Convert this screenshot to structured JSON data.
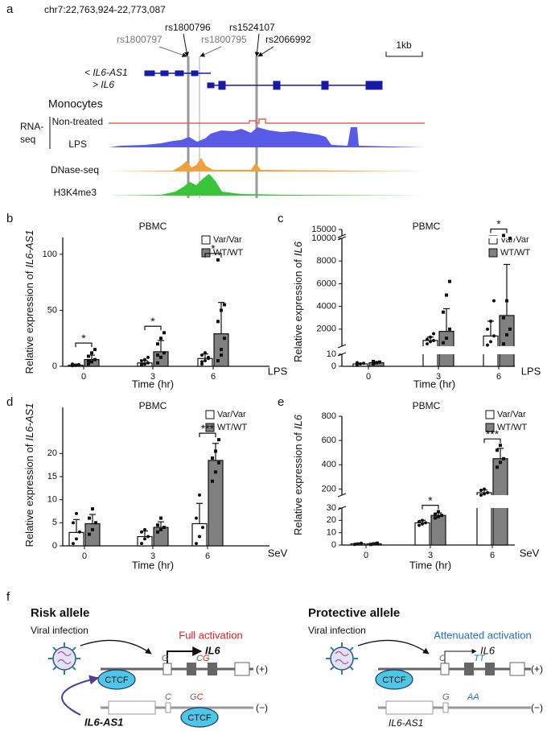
{
  "panel_a": {
    "label": "a",
    "locus": "chr7:22,763,924-22,773,087",
    "snps": [
      "rs1800797",
      "rs1800796",
      "rs1800795",
      "rs1524107",
      "rs2066992"
    ],
    "scale": "1kb",
    "genes": [
      "< IL6-AS1",
      "> IL6"
    ],
    "cell_type": "Monocytes",
    "assay_group": [
      "RNA-",
      "seq"
    ],
    "tracks": [
      "Non-treated",
      "LPS",
      "DNase-seq",
      "H3K4me3"
    ]
  },
  "chart_data": [
    {
      "type": "bar",
      "panel_label": "b",
      "title": "PBMC",
      "xlabel": "Time (hr)",
      "stimulus": "LPS",
      "ylabel": {
        "text": "Relative expression of",
        "gene": "IL6-AS1"
      },
      "categories": [
        "0",
        "3",
        "6"
      ],
      "ylim": [
        0,
        115
      ],
      "yticks": [
        0,
        50,
        100
      ],
      "series": [
        {
          "name": "Var/Var",
          "color": "#ffffff",
          "values": [
            1,
            3,
            7
          ],
          "errors": [
            1,
            2,
            4
          ],
          "points": [
            [
              0.5,
              1,
              1.5,
              2,
              0.8,
              1.2
            ],
            [
              1,
              2,
              3,
              5,
              6,
              8,
              2
            ],
            [
              2,
              5,
              8,
              10,
              12,
              7,
              4
            ]
          ]
        },
        {
          "name": "WT/WT",
          "color": "#808080",
          "values": [
            6,
            13,
            29
          ],
          "errors": [
            4,
            10,
            28
          ],
          "points": [
            [
              2,
              4,
              6,
              9,
              12,
              15,
              5
            ],
            [
              3,
              8,
              12,
              20,
              25,
              30,
              10
            ],
            [
              5,
              15,
              25,
              40,
              50,
              55,
              95,
              10
            ]
          ]
        }
      ],
      "significance": [
        "*",
        "*",
        "*"
      ]
    },
    {
      "type": "bar",
      "panel_label": "c",
      "title": "PBMC",
      "xlabel": "Time (hr)",
      "stimulus": "LPS",
      "ylabel": {
        "text": "Relative expression of",
        "gene": "IL6"
      },
      "categories": [
        "0",
        "3",
        "6"
      ],
      "ylim_segments": [
        [
          0,
          10
        ],
        [
          500,
          10000
        ],
        [
          10000,
          15000
        ]
      ],
      "yticks": [
        0,
        10,
        2000,
        4000,
        6000,
        8000,
        10000,
        15000
      ],
      "series": [
        {
          "name": "Var/Var",
          "color": "#ffffff",
          "values": [
            2,
            1000,
            1400
          ],
          "errors": [
            0.5,
            300,
            1300
          ],
          "points": [
            [
              1,
              2,
              2.5,
              3
            ],
            [
              700,
              900,
              1000,
              1100,
              1300,
              1600
            ],
            [
              600,
              900,
              1400,
              2000,
              2700,
              4500
            ]
          ]
        },
        {
          "name": "WT/WT",
          "color": "#808080",
          "values": [
            3,
            1800,
            3200
          ],
          "errors": [
            1,
            2000,
            4500
          ],
          "points": [
            [
              2,
              3,
              3.5,
              4
            ],
            [
              800,
              1200,
              2000,
              3500,
              5000,
              6200
            ],
            [
              700,
              1500,
              2000,
              3000,
              4500,
              10000,
              10300
            ]
          ]
        }
      ],
      "significance": [
        null,
        null,
        "*"
      ]
    },
    {
      "type": "bar",
      "panel_label": "d",
      "title": "PBMC",
      "xlabel": "Time (hr)",
      "stimulus": "SeV",
      "ylabel": {
        "text": "Relative expression of",
        "gene": "IL6-AS1"
      },
      "categories": [
        "0",
        "3",
        "6"
      ],
      "ylim": [
        0,
        30
      ],
      "yticks": [
        0,
        5,
        10,
        15,
        20
      ],
      "series": [
        {
          "name": "Var/Var",
          "color": "#ffffff",
          "values": [
            2.9,
            2,
            4.8
          ],
          "errors": [
            2.8,
            1.2,
            4.4
          ],
          "points": [
            [
              0.5,
              1.5,
              3,
              5,
              7
            ],
            [
              0.5,
              1.5,
              2,
              3,
              3.5
            ],
            [
              0.5,
              2,
              4,
              6,
              11
            ]
          ]
        },
        {
          "name": "WT/WT",
          "color": "#808080",
          "values": [
            4.8,
            4,
            18.5
          ],
          "errors": [
            2,
            1.2,
            3.7
          ],
          "points": [
            [
              2.5,
              3.5,
              5,
              6,
              8
            ],
            [
              3,
              3.5,
              4,
              4.5,
              6
            ],
            [
              14,
              16,
              18,
              19,
              20.5,
              23
            ]
          ]
        }
      ],
      "significance": [
        null,
        null,
        "***"
      ]
    },
    {
      "type": "bar",
      "panel_label": "e",
      "title": "PBMC",
      "xlabel": "Time (hr)",
      "stimulus": "SeV",
      "ylabel": {
        "text": "Relative expression of",
        "gene": "IL6"
      },
      "categories": [
        "0",
        "3",
        "6"
      ],
      "ylim_segments": [
        [
          0,
          30
        ],
        [
          150,
          800
        ]
      ],
      "yticks": [
        0,
        10,
        20,
        30,
        200,
        400,
        600,
        800
      ],
      "series": [
        {
          "name": "Var/Var",
          "color": "#ffffff",
          "values": [
            1,
            18,
            170
          ],
          "errors": [
            0.5,
            2,
            22
          ],
          "points": [
            [
              0.5,
              1,
              1.5
            ],
            [
              16,
              17,
              18,
              19,
              20
            ],
            [
              150,
              160,
              170,
              190,
              200
            ]
          ]
        },
        {
          "name": "WT/WT",
          "color": "#808080",
          "values": [
            1,
            24,
            450
          ],
          "errors": [
            0.5,
            2,
            85
          ],
          "points": [
            [
              0.5,
              1,
              1.5
            ],
            [
              22,
              23,
              24,
              25,
              27
            ],
            [
              380,
              420,
              450,
              520,
              560
            ]
          ]
        }
      ],
      "significance": [
        null,
        "*",
        "***"
      ]
    }
  ],
  "panel_f": {
    "label": "f",
    "risk": {
      "title": "Risk allele",
      "infection": "Viral infection",
      "outcome": "Full activation",
      "gene_plus": "IL6",
      "gene_minus": "IL6-AS1",
      "protein": "CTCF",
      "protein_minus": "CTCF",
      "plus_promoter_base": "G",
      "plus_snp": [
        "C",
        "G"
      ],
      "minus_promoter_base": "C",
      "minus_snp": [
        "G",
        "C"
      ],
      "plus_strand": "(+)",
      "minus_strand": "(−)"
    },
    "protective": {
      "title": "Protective allele",
      "infection": "Viral infection",
      "outcome": "Attenuated activation",
      "gene_plus": "IL6",
      "gene_minus": "IL6-AS1",
      "protein": "CTCF",
      "plus_promoter_base": "C",
      "plus_snp": "TT",
      "minus_promoter_base": "G",
      "minus_snp": "AA",
      "plus_strand": "(+)",
      "minus_strand": "(−)"
    }
  }
}
